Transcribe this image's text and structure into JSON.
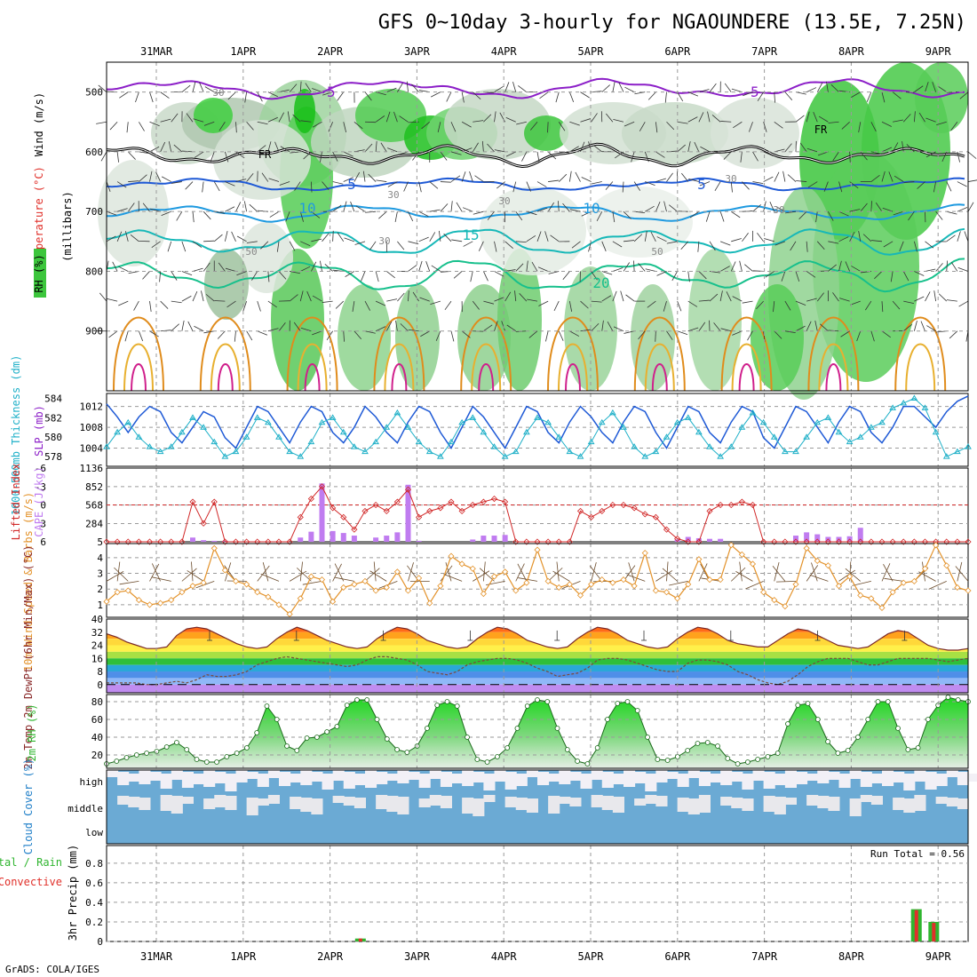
{
  "title": "GFS 0~10day 3-hourly for NGAOUNDERE (13.5E, 7.25N)",
  "credit": "GrADS: COLA/IGES",
  "dates": [
    "31MAR",
    "1APR",
    "2APR",
    "3APR",
    "4APR",
    "5APR",
    "6APR",
    "7APR",
    "8APR",
    "9APR"
  ],
  "colors": {
    "temp_purple": "#8c1fc8",
    "temp_blue": "#1f5ad6",
    "rh_green": "#3cc63c",
    "precip_total": "#2fb52f",
    "precip_conv": "#e0302a",
    "cape_bar": "#c07cf0",
    "lifted_index": "#d12828",
    "wind_line": "#e3922a",
    "cloud": "#6baad4"
  },
  "chart_data": [
    {
      "type": "heatmap",
      "panel": "upper-air cross-section",
      "ylabel": "(millibars)",
      "labels": {
        "wind": "Wind (m/s)",
        "temperature": "Temperature (°C)",
        "rh": "RH (%)"
      },
      "y_ticks": [
        500,
        600,
        700,
        800,
        900
      ],
      "ylim": [
        1000,
        450
      ],
      "contour_labels": {
        "temperature": [
          "-5",
          "-5",
          "5",
          "5",
          "10",
          "10",
          "15",
          "20"
        ],
        "rh": [
          "30",
          "30",
          "30",
          "50",
          "50",
          "30",
          "30",
          "30"
        ],
        "freezing": [
          "FR",
          "FR"
        ]
      }
    },
    {
      "type": "line",
      "panel": "thickness-slp",
      "labels": {
        "left": "1000-500mb Thickness (dm)",
        "right": "SLP (mb)"
      },
      "left_ticks": [
        578,
        580,
        582,
        584
      ],
      "right_ticks": [
        1004,
        1008,
        1012
      ],
      "series": [
        {
          "name": "SLP (mb)",
          "values": [
            1012.5,
            1010,
            1007,
            1010,
            1012,
            1011,
            1007,
            1005,
            1008,
            1011,
            1010,
            1006,
            1004,
            1008,
            1012,
            1011,
            1008,
            1005,
            1009,
            1012,
            1011,
            1007,
            1005,
            1008,
            1012,
            1010,
            1007,
            1005,
            1009,
            1012,
            1011,
            1007,
            1004,
            1008,
            1012,
            1010,
            1007,
            1004,
            1008,
            1012,
            1011,
            1007,
            1005,
            1009,
            1012,
            1010,
            1007,
            1005,
            1009,
            1012,
            1011,
            1007,
            1004,
            1008,
            1012,
            1011,
            1007,
            1005,
            1009,
            1012,
            1011,
            1006,
            1004,
            1008,
            1012,
            1011,
            1008,
            1005,
            1009,
            1012,
            1011,
            1007,
            1005,
            1008,
            1012,
            1012,
            1010,
            1008,
            1011,
            1013,
            1014
          ]
        },
        {
          "name": "Thickness (dm)",
          "values": [
            579,
            580.5,
            581.5,
            580,
            579,
            578.5,
            579,
            580.5,
            582,
            581,
            579.5,
            578,
            578.5,
            580,
            582,
            581.5,
            580,
            578.5,
            578,
            579.5,
            581.5,
            582,
            580.5,
            579,
            578.5,
            579.5,
            581,
            582.5,
            581,
            579.5,
            578.5,
            578,
            579.5,
            581.5,
            582,
            580.5,
            579,
            578,
            578.5,
            580.5,
            582,
            581.5,
            580,
            578.5,
            578,
            579.5,
            581.5,
            582.5,
            581,
            579,
            578,
            578.5,
            580,
            581.5,
            582,
            580.5,
            579,
            578,
            579,
            581,
            582.5,
            581.5,
            580,
            578.5,
            578.5,
            580,
            581.5,
            582,
            580.5,
            579.5,
            580,
            581,
            581.5,
            583,
            583.5,
            584,
            583,
            580.5,
            578,
            578.5,
            579
          ]
        }
      ]
    },
    {
      "type": "bar",
      "panel": "lifted-index-cape",
      "labels": {
        "left": "Lifted Index",
        "right": "CAPE (J/kg)"
      },
      "left_ticks": [
        "-6",
        "-3",
        "0",
        "3",
        "6"
      ],
      "right_ticks": [
        1136,
        852,
        568,
        284,
        5
      ],
      "series": [
        {
          "name": "CAPE (J/kg)",
          "values": [
            0,
            0,
            0,
            0,
            0,
            0,
            0,
            0,
            70,
            30,
            20,
            20,
            0,
            0,
            0,
            0,
            0,
            0,
            70,
            160,
            900,
            170,
            140,
            100,
            0,
            70,
            100,
            150,
            880,
            20,
            0,
            0,
            0,
            0,
            40,
            100,
            100,
            110,
            0,
            0,
            0,
            0,
            0,
            0,
            0,
            0,
            0,
            0,
            0,
            0,
            0,
            0,
            0,
            40,
            80,
            60,
            50,
            50,
            0,
            0,
            0,
            0,
            0,
            0,
            100,
            150,
            120,
            80,
            80,
            90,
            220,
            0,
            0,
            0,
            0,
            0,
            0,
            0,
            0,
            0,
            0
          ]
        },
        {
          "name": "Lifted Index",
          "values": [
            6,
            6,
            6,
            6,
            6,
            6,
            6,
            6,
            -0.5,
            3,
            -0.5,
            6,
            6,
            6,
            6,
            6,
            6,
            6,
            2,
            -1,
            -3,
            0.5,
            2,
            4,
            1,
            0,
            1,
            -0.5,
            -2.5,
            2,
            1,
            0.5,
            -0.5,
            1,
            0,
            -0.5,
            -1,
            -0.5,
            6,
            6,
            6,
            6,
            6,
            6,
            1,
            2,
            1,
            0,
            0,
            0.5,
            1.5,
            2,
            4,
            5.5,
            6,
            6,
            1,
            0,
            0,
            -0.5,
            0,
            6,
            6,
            6,
            6,
            6,
            6,
            6,
            6,
            6,
            6,
            6,
            6,
            6,
            6,
            6,
            6,
            6,
            6,
            6,
            6
          ]
        }
      ]
    },
    {
      "type": "line",
      "panel": "10m-wind",
      "ylabel": "10m Wind Speed & Barbs (m/s)",
      "y_ticks": [
        1,
        2,
        3,
        4
      ],
      "series": [
        {
          "name": "Speed",
          "values": [
            1.2,
            1.8,
            1.9,
            1.3,
            1,
            1.1,
            1.3,
            1.8,
            2.2,
            2.4,
            4.6,
            3.2,
            2.5,
            2.3,
            1.8,
            1.5,
            1,
            0.4,
            1.4,
            2.8,
            2.6,
            1.2,
            2.1,
            2.3,
            2.5,
            1.9,
            2.1,
            3.1,
            1.9,
            2.7,
            1.1,
            2.2,
            4.1,
            3.6,
            3.3,
            1.7,
            2.8,
            3.1,
            1.9,
            2.4,
            4.5,
            2.5,
            2.1,
            2.3,
            1.6,
            2.3,
            2.6,
            2.4,
            2.6,
            2.2,
            4.3,
            1.9,
            1.8,
            1.4,
            2.3,
            3.9,
            2.6,
            2.6,
            4.8,
            4.2,
            3.6,
            1.8,
            1.3,
            0.9,
            2.3,
            4.6,
            3.8,
            3.5,
            2.2,
            2.8,
            1.6,
            1.4,
            0.8,
            1.8,
            2.4,
            2.5,
            3.3,
            4.8,
            3.5,
            2.1,
            1.9
          ]
        }
      ]
    },
    {
      "type": "area",
      "panel": "2m-temp-dewpoint",
      "ylabel": "2m Temp 2m DewPt (6hr Min/Max) (°C)",
      "y_ticks": [
        0,
        8,
        16,
        24,
        32,
        40
      ],
      "series": [
        {
          "name": "2m Temp",
          "values": [
            31,
            29,
            26,
            24,
            22,
            22,
            23,
            30,
            34,
            35,
            34,
            31,
            28,
            25,
            23,
            22,
            23,
            28,
            32,
            35,
            33,
            30,
            27,
            25,
            23,
            22,
            23,
            28,
            32,
            35,
            34,
            31,
            27,
            25,
            23,
            22,
            23,
            28,
            32,
            35,
            34,
            31,
            27,
            25,
            23,
            22,
            23,
            28,
            32,
            35,
            34,
            31,
            27,
            25,
            23,
            22,
            23,
            28,
            32,
            35,
            34,
            31,
            27,
            25,
            24,
            23,
            23,
            27,
            31,
            34,
            33,
            30,
            27,
            24,
            23,
            22,
            23,
            27,
            31,
            33,
            32,
            28,
            24,
            22,
            21,
            21,
            22
          ]
        },
        {
          "name": "2m DewPt",
          "values": [
            1,
            1,
            1,
            1,
            0,
            0,
            1,
            2,
            1,
            3,
            6,
            5,
            5,
            6,
            8,
            12,
            14,
            16,
            17,
            16,
            15,
            14,
            13,
            12,
            11,
            12,
            15,
            17,
            17,
            16,
            15,
            12,
            8,
            7,
            6,
            8,
            12,
            14,
            15,
            16,
            16,
            15,
            13,
            10,
            8,
            5,
            6,
            7,
            10,
            15,
            16,
            16,
            15,
            13,
            11,
            9,
            8,
            8,
            13,
            15,
            15,
            14,
            12,
            8,
            6,
            3,
            1,
            0,
            2,
            6,
            11,
            14,
            16,
            16,
            16,
            14,
            12,
            12,
            14,
            16,
            16,
            16,
            16,
            15,
            14,
            15,
            16
          ]
        }
      ]
    },
    {
      "type": "area",
      "panel": "2m-rh",
      "ylabel": "2m RH (%)",
      "y_ticks": [
        20,
        40,
        60,
        80
      ],
      "series": [
        {
          "name": "2m RH",
          "values": [
            10,
            13,
            17,
            20,
            22,
            24,
            29,
            34,
            26,
            15,
            12,
            12,
            18,
            22,
            28,
            45,
            75,
            60,
            30,
            25,
            39,
            40,
            46,
            52,
            76,
            82,
            82,
            60,
            38,
            26,
            23,
            30,
            50,
            76,
            80,
            75,
            40,
            15,
            12,
            18,
            28,
            50,
            75,
            82,
            80,
            50,
            26,
            13,
            10,
            28,
            60,
            78,
            80,
            70,
            40,
            15,
            14,
            18,
            25,
            33,
            34,
            30,
            16,
            10,
            12,
            15,
            18,
            22,
            55,
            76,
            78,
            60,
            35,
            22,
            25,
            40,
            60,
            80,
            80,
            50,
            26,
            28,
            60,
            76,
            85,
            82,
            80
          ]
        }
      ]
    },
    {
      "type": "heatmap",
      "panel": "cloud-cover",
      "ylabel": "Cloud Cover (%)",
      "levels": [
        "high",
        "middle",
        "low"
      ]
    },
    {
      "type": "bar",
      "panel": "precip",
      "ylabel": "3hr Precip (mm)",
      "legend": [
        "Total / Rain",
        "Convective"
      ],
      "y_ticks": [
        0,
        0.2,
        0.4,
        0.6,
        0.8
      ],
      "run_total_label": "Run Total = 0.56",
      "bars": [
        {
          "date_index": 2.35,
          "total": 0.03,
          "conv": 0.03
        },
        {
          "date_index": 8.75,
          "total": 0.33,
          "conv": 0.32
        },
        {
          "date_index": 8.95,
          "total": 0.2,
          "conv": 0.19
        }
      ]
    }
  ]
}
